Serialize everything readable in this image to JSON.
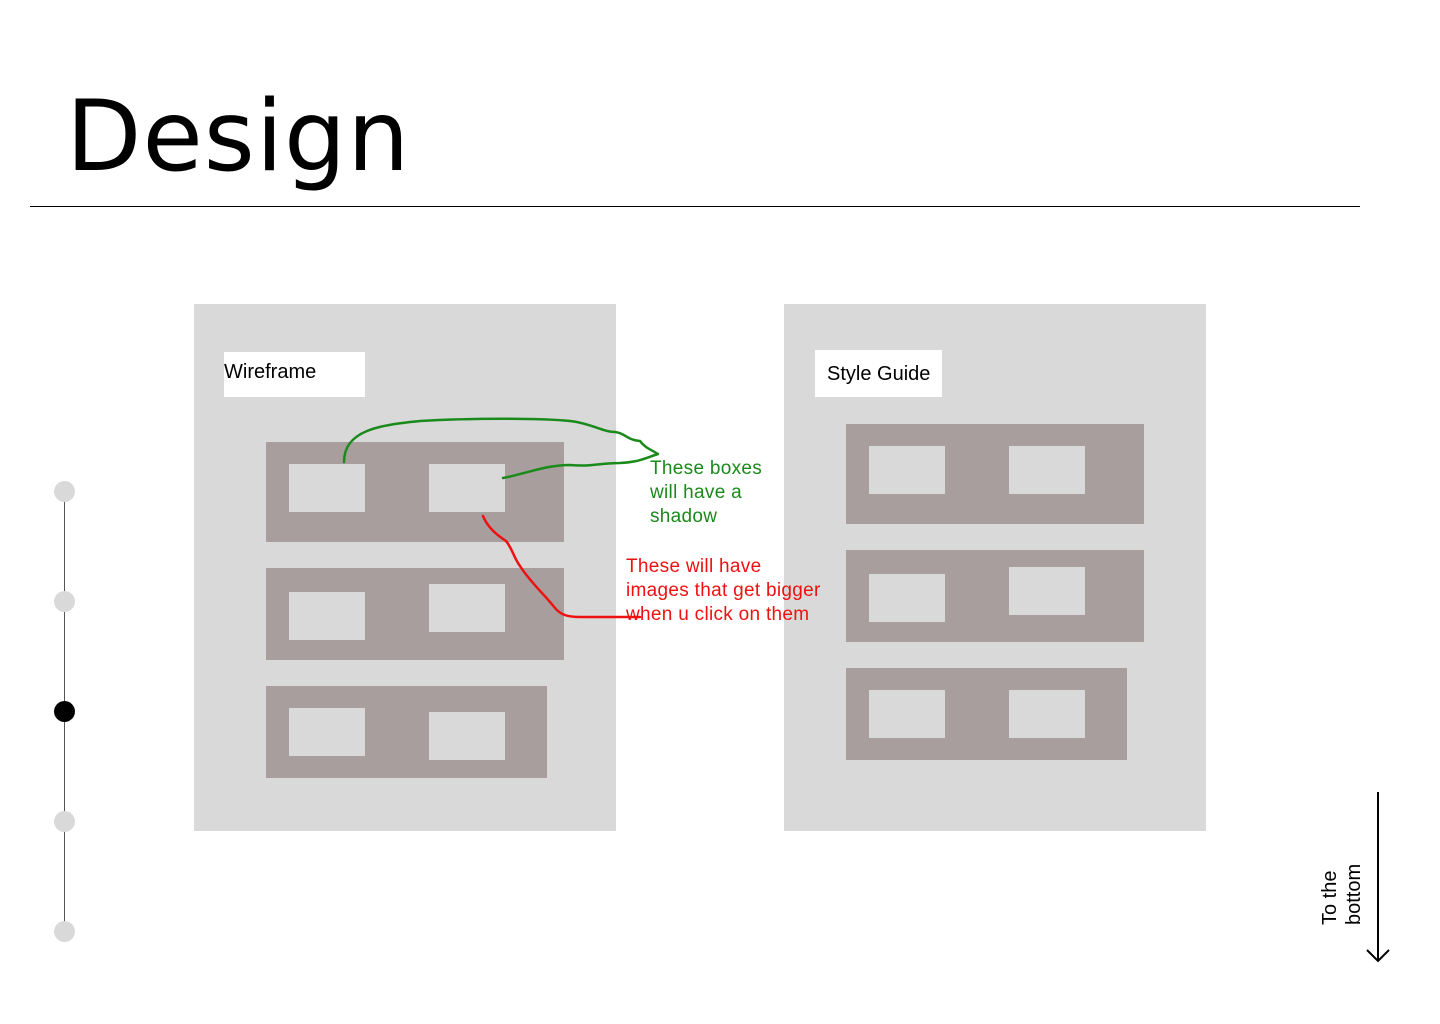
{
  "page": {
    "title": "Design"
  },
  "panels": {
    "wireframe": {
      "label": "Wireframe"
    },
    "style_guide": {
      "label": "Style Guide"
    }
  },
  "annotations": {
    "shadow_note": "These boxes will have a shadow",
    "images_note": "These will have images that get bigger when u click on them",
    "shadow_note_color": "#1a8a1a",
    "images_note_color": "#ee1111"
  },
  "timeline": {
    "step_count": 5,
    "active_step": 3
  },
  "navigation": {
    "to_bottom_label": "To the bottom",
    "arrow_icon": "arrow-down-icon"
  },
  "colors": {
    "panel_bg": "#d9d9d9",
    "row_bg": "#a89e9d",
    "cell_bg": "#d9d9d9",
    "active_dot": "#000000",
    "inactive_dot": "#d9d9d9"
  }
}
